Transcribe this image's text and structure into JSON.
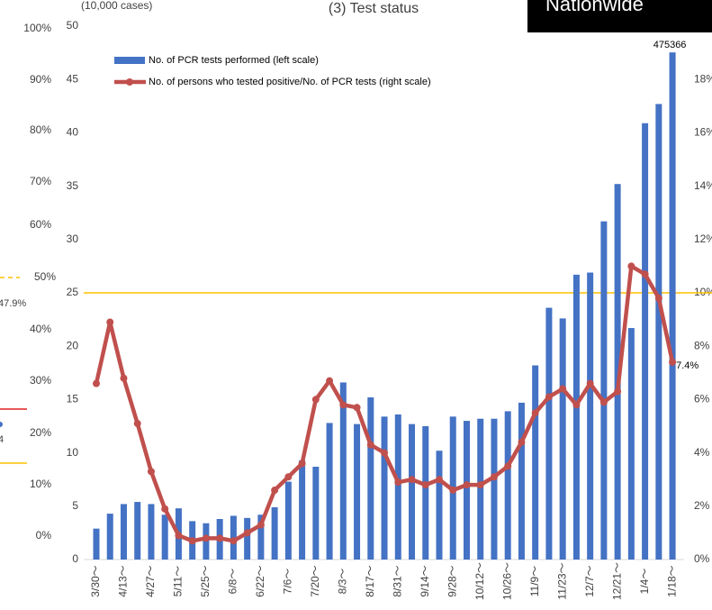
{
  "side_panel": {
    "tick_labels": [
      "100%",
      "90%",
      "80%",
      "70%",
      "60%",
      "50%",
      "40%",
      "30%",
      "20%",
      "10%",
      "0%"
    ],
    "annotations": [
      "47.9%",
      "4"
    ]
  },
  "chart_data": {
    "type": "bar_line",
    "title": "(3) Test status",
    "y_axis_label": "(10,000 cases)",
    "badge": "Nationwide",
    "categories": [
      "3/30～",
      null,
      "4/13～",
      null,
      "4/27～",
      null,
      "5/11～",
      null,
      "5/25～",
      null,
      "6/8～",
      null,
      "6/22～",
      null,
      "7/6～",
      null,
      "7/20～",
      null,
      "8/3～",
      null,
      "8/17～",
      null,
      "8/31～",
      null,
      "9/14～",
      null,
      "9/28～",
      null,
      "10/12～",
      null,
      "10/26～",
      null,
      "11/9～",
      null,
      "11/23～",
      null,
      "12/7～",
      null,
      "12/21～",
      null,
      "1/4～",
      null,
      "1/18～"
    ],
    "series": [
      {
        "name": "No. of PCR tests performed (left scale)",
        "type": "bar",
        "color": "#4472c4",
        "values": [
          2.9,
          4.3,
          5.2,
          5.4,
          5.2,
          4.2,
          4.8,
          3.6,
          3.4,
          3.8,
          4.1,
          3.9,
          4.2,
          4.9,
          7.3,
          9.3,
          8.7,
          12.8,
          16.6,
          12.7,
          15.2,
          13.4,
          13.6,
          12.7,
          12.5,
          10.2,
          13.4,
          13.0,
          13.2,
          13.2,
          13.9,
          14.7,
          18.2,
          23.6,
          22.6,
          26.7,
          26.9,
          31.7,
          35.2,
          21.7,
          40.9,
          42.7,
          47.5366
        ],
        "value_labels": [
          null,
          null,
          null,
          null,
          null,
          null,
          null,
          null,
          null,
          null,
          null,
          null,
          null,
          null,
          null,
          null,
          null,
          null,
          null,
          null,
          null,
          null,
          null,
          null,
          null,
          null,
          null,
          null,
          null,
          null,
          null,
          null,
          null,
          null,
          null,
          null,
          null,
          null,
          null,
          null,
          null,
          null,
          "475366"
        ]
      },
      {
        "name": "No. of persons who tested positive/No. of PCR tests (right scale)",
        "type": "line",
        "axis": "y2",
        "color": "#c0504d",
        "values": [
          6.6,
          8.9,
          6.8,
          5.1,
          3.3,
          1.9,
          0.9,
          0.7,
          0.8,
          0.8,
          0.7,
          1.0,
          1.3,
          2.6,
          3.1,
          3.6,
          6.0,
          6.7,
          5.8,
          5.7,
          4.3,
          4.0,
          2.9,
          3.0,
          2.8,
          3.0,
          2.6,
          2.8,
          2.8,
          3.1,
          3.5,
          4.4,
          5.5,
          6.1,
          6.4,
          5.8,
          6.6,
          5.9,
          6.3,
          11.0,
          10.7,
          9.8,
          7.4
        ],
        "value_labels": [
          null,
          null,
          null,
          null,
          null,
          null,
          null,
          null,
          null,
          null,
          null,
          null,
          null,
          null,
          null,
          null,
          null,
          null,
          null,
          null,
          null,
          null,
          null,
          null,
          null,
          null,
          null,
          null,
          null,
          null,
          null,
          null,
          null,
          null,
          null,
          null,
          null,
          null,
          null,
          null,
          null,
          null,
          "7.4%"
        ]
      }
    ],
    "ylim": [
      0,
      50
    ],
    "yticks": [
      0,
      5,
      10,
      15,
      20,
      25,
      30,
      35,
      40,
      45,
      50
    ],
    "y2lim": [
      0,
      20
    ],
    "y2ticks": [
      {
        "value": 0,
        "label": "0%"
      },
      {
        "value": 2,
        "label": "2%"
      },
      {
        "value": 4,
        "label": "4%"
      },
      {
        "value": 6,
        "label": "6%"
      },
      {
        "value": 8,
        "label": "8%"
      },
      {
        "value": 10,
        "label": "10%"
      },
      {
        "value": 12,
        "label": "12%"
      },
      {
        "value": 14,
        "label": "14%"
      },
      {
        "value": 16,
        "label": "16%"
      },
      {
        "value": 18,
        "label": "18%"
      }
    ],
    "reference_line": {
      "value": 10,
      "axis": "y2",
      "color": "#ffc000"
    },
    "legend": "top-left"
  }
}
